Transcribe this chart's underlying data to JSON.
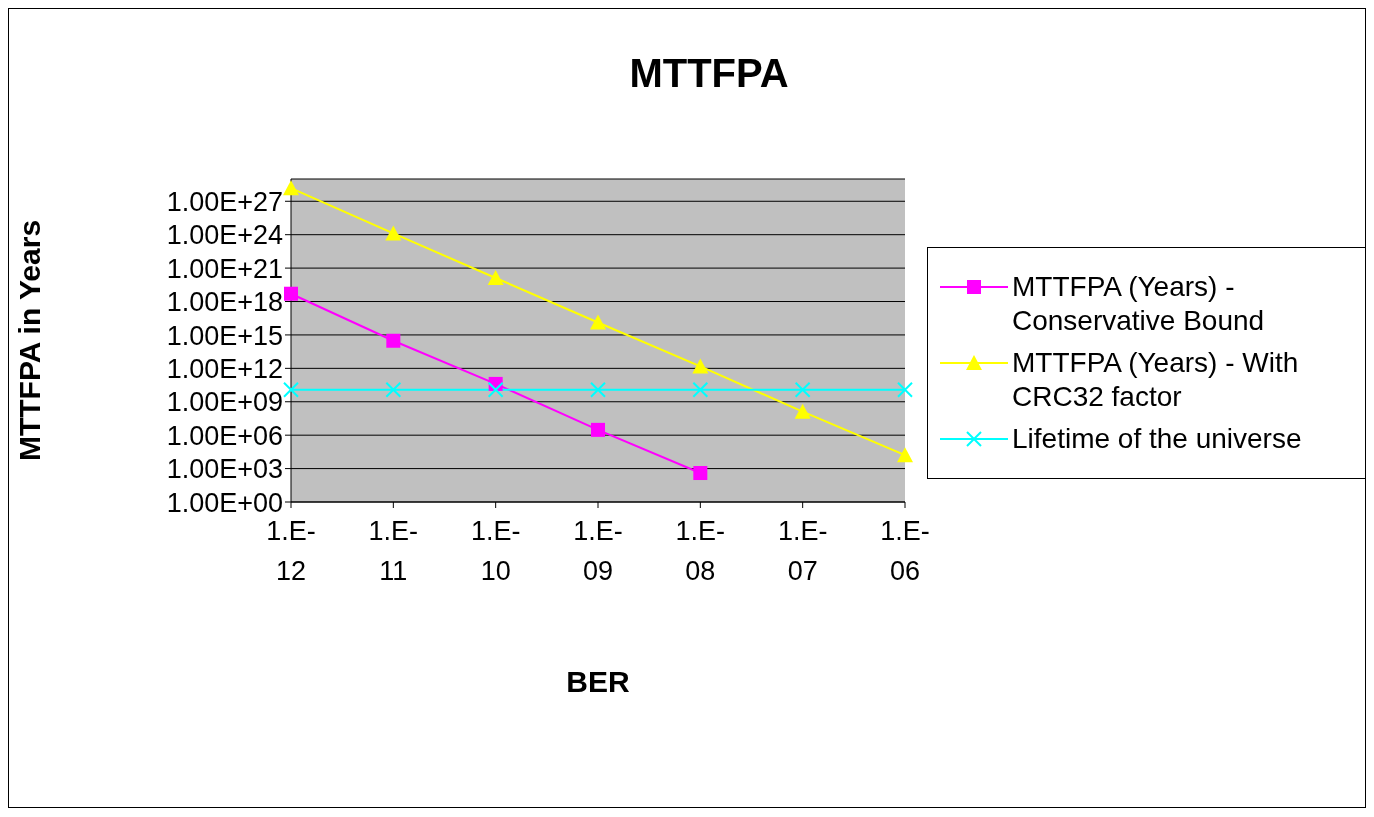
{
  "chart_data": {
    "type": "line",
    "title": "MTTFPA",
    "xlabel": "BER",
    "ylabel": "MTTFPA in Years",
    "categories": [
      "1.E-12",
      "1.E-11",
      "1.E-10",
      "1.E-09",
      "1.E-08",
      "1.E-07",
      "1.E-06"
    ],
    "series": [
      {
        "name": "MTTFPA (Years) - Conservative Bound",
        "color": "#ff00ff",
        "marker": "square",
        "values": [
          5e+18,
          300000000000000.0,
          40000000000.0,
          3000000.0,
          400.0,
          null,
          null
        ]
      },
      {
        "name": "MTTFPA (Years) - With CRC32 factor",
        "color": "#ffff00",
        "marker": "triangle",
        "values": [
          1.5e+28,
          1.3e+24,
          1.3e+20,
          1.3e+16,
          1500000000000.0,
          130000000.0,
          16000.0
        ]
      },
      {
        "name": "Lifetime of the universe",
        "color": "#00ffff",
        "marker": "cross",
        "values": [
          12000000000.0,
          12000000000.0,
          12000000000.0,
          12000000000.0,
          12000000000.0,
          12000000000.0,
          12000000000.0
        ]
      }
    ],
    "log": "y",
    "ylim": [
      1,
      1e+29
    ],
    "yticks": [
      {
        "value": 1,
        "label": "1.00E+00"
      },
      {
        "value": 1000.0,
        "label": "1.00E+03"
      },
      {
        "value": 1000000.0,
        "label": "1.00E+06"
      },
      {
        "value": 1000000000.0,
        "label": "1.00E+09"
      },
      {
        "value": 1000000000000.0,
        "label": "1.00E+12"
      },
      {
        "value": 1000000000000000.0,
        "label": "1.00E+15"
      },
      {
        "value": 1e+18,
        "label": "1.00E+18"
      },
      {
        "value": 1e+21,
        "label": "1.00E+21"
      },
      {
        "value": 1e+24,
        "label": "1.00E+24"
      },
      {
        "value": 1e+27,
        "label": "1.00E+27"
      }
    ],
    "grid": "y",
    "legend": "right",
    "line_style": "solid"
  }
}
